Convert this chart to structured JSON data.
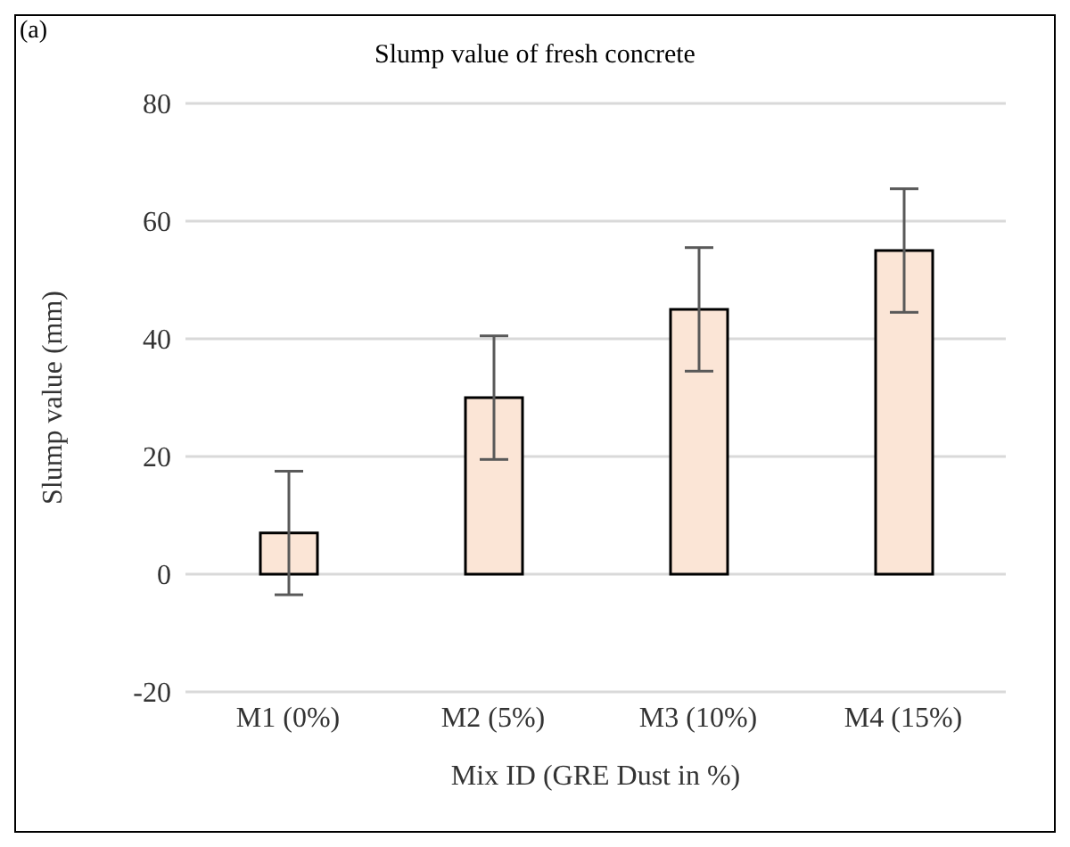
{
  "chart_data": {
    "type": "bar",
    "title": "Slump value of fresh concrete",
    "xlabel": "Mix ID (GRE Dust in %)",
    "ylabel": "Slump value (mm)",
    "annotations": [
      "(a)"
    ],
    "categories": [
      "M1 (0%)",
      "M2 (5%)",
      "M3 (10%)",
      "M4 (15%)"
    ],
    "values": [
      7,
      30,
      45,
      55
    ],
    "errors": [
      10.5,
      10.5,
      10.5,
      10.5
    ],
    "color": "#fbe5d6",
    "ylim": [
      -20,
      80
    ],
    "yticks": [
      -20,
      0,
      20,
      40,
      60,
      80
    ],
    "grid": "y"
  }
}
